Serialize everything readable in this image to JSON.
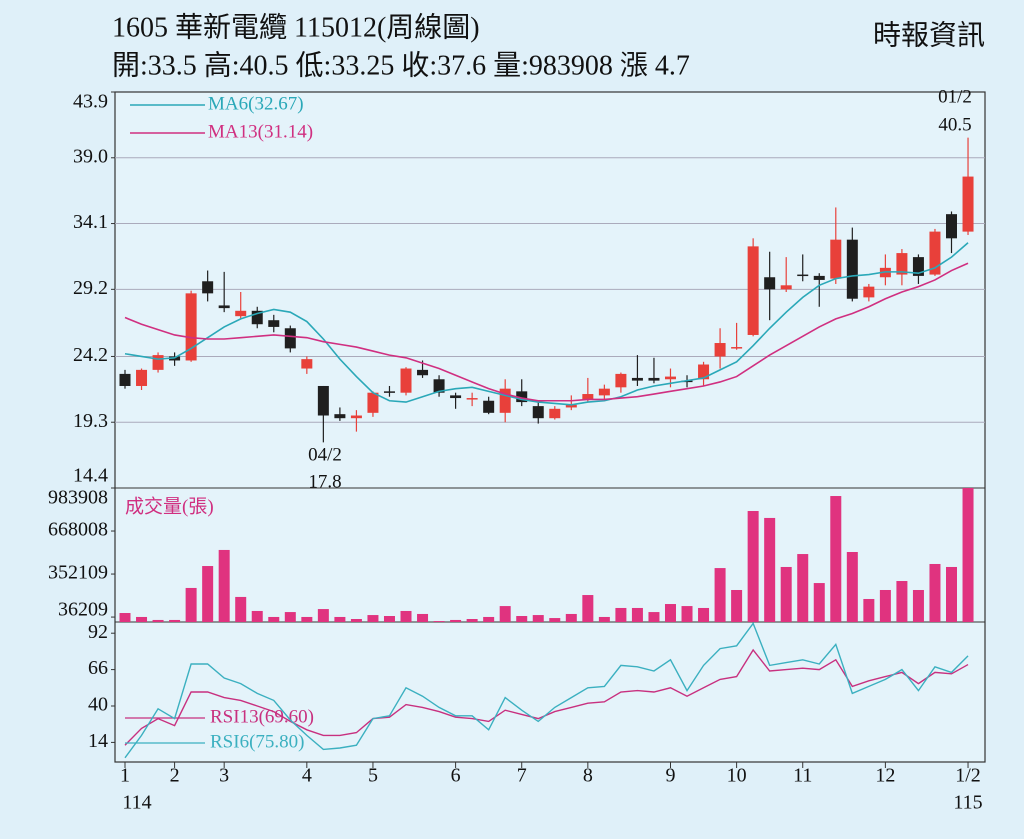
{
  "chart_data": {
    "type": "candlestick",
    "title": "1605  華新電纜 115012(周線圖)",
    "subtitle": "開:33.5 高:40.5 低:33.25 收:37.6 量:983908 漲 4.7",
    "source": "時報資訊",
    "categories": [
      "1",
      null,
      null,
      "2",
      null,
      null,
      "3",
      null,
      null,
      null,
      null,
      "4",
      null,
      null,
      null,
      "5",
      null,
      null,
      null,
      null,
      "6",
      null,
      null,
      null,
      "7",
      null,
      null,
      null,
      "8",
      null,
      null,
      null,
      null,
      "9",
      null,
      null,
      null,
      "10",
      null,
      null,
      null,
      "11",
      null,
      null,
      null,
      null,
      "12",
      null,
      null,
      null,
      null,
      "1/2"
    ],
    "x_sublabels": [
      "114",
      "115"
    ],
    "up_color": "#e8403a",
    "down_color": "#1f1f1f",
    "open": [
      22.9,
      22.0,
      23.2,
      24.2,
      23.9,
      29.8,
      28.0,
      27.2,
      27.6,
      26.9,
      26.3,
      23.3,
      22.0,
      19.9,
      19.6,
      20.0,
      21.6,
      21.5,
      23.2,
      22.5,
      21.3,
      21.0,
      20.9,
      20.0,
      21.6,
      20.5,
      19.6,
      20.4,
      21.0,
      21.3,
      21.9,
      22.6,
      22.6,
      22.5,
      22.4,
      22.5,
      24.2,
      24.8,
      25.8,
      30.1,
      29.2,
      30.3,
      30.2,
      30.0,
      32.9,
      28.6,
      30.1,
      30.3,
      31.6,
      30.3,
      34.8,
      33.5
    ],
    "high": [
      23.2,
      23.3,
      24.5,
      24.5,
      29.1,
      30.6,
      30.5,
      29.0,
      27.9,
      27.3,
      26.5,
      24.2,
      22.0,
      20.4,
      20.2,
      21.6,
      22.0,
      23.4,
      23.9,
      22.8,
      21.5,
      21.5,
      21.2,
      22.5,
      22.5,
      20.8,
      20.5,
      21.3,
      22.6,
      22.1,
      23.0,
      24.3,
      24.1,
      23.3,
      22.8,
      23.8,
      26.3,
      26.7,
      33.0,
      32.0,
      31.6,
      31.8,
      30.4,
      35.3,
      33.8,
      29.6,
      31.8,
      32.2,
      31.8,
      33.7,
      35.0,
      40.5
    ],
    "low": [
      21.8,
      21.7,
      23.0,
      23.5,
      23.8,
      28.3,
      27.5,
      27.0,
      26.3,
      26.0,
      24.5,
      22.9,
      17.8,
      19.4,
      18.6,
      19.7,
      21.2,
      21.3,
      22.6,
      21.2,
      20.3,
      20.5,
      19.9,
      19.3,
      20.5,
      19.2,
      19.5,
      20.2,
      20.8,
      21.0,
      21.5,
      22.0,
      22.2,
      21.9,
      21.9,
      22.0,
      23.3,
      24.7,
      25.7,
      26.9,
      29.0,
      29.8,
      27.9,
      29.6,
      28.3,
      28.3,
      29.5,
      29.5,
      29.6,
      30.2,
      31.9,
      33.25
    ],
    "close": [
      22.0,
      23.2,
      24.3,
      23.9,
      28.9,
      28.9,
      27.8,
      27.6,
      26.6,
      26.4,
      24.8,
      24.0,
      19.8,
      19.6,
      19.8,
      21.5,
      21.5,
      23.3,
      22.8,
      21.5,
      21.1,
      21.1,
      20.0,
      21.8,
      20.8,
      19.6,
      20.3,
      20.6,
      21.4,
      21.8,
      22.9,
      22.4,
      22.4,
      22.7,
      22.3,
      23.6,
      25.2,
      24.9,
      32.4,
      29.2,
      29.5,
      30.2,
      29.9,
      32.9,
      28.5,
      29.4,
      30.8,
      31.9,
      30.2,
      33.5,
      33.0,
      37.6
    ],
    "ylim": [
      14.4,
      43.9
    ],
    "yticks": [
      14.4,
      19.3,
      24.2,
      29.2,
      34.1,
      {
        "value": 39,
        "label": "39.0"
      },
      43.9
    ],
    "grid": true,
    "series": [
      {
        "name": "MA6(32.67)",
        "color": "#2aa8b8",
        "values": [
          24.4,
          24.2,
          24.0,
          24.1,
          24.8,
          25.6,
          26.4,
          27.0,
          27.4,
          27.7,
          27.5,
          26.8,
          25.5,
          24.0,
          22.7,
          21.5,
          20.9,
          20.8,
          21.2,
          21.6,
          21.8,
          21.9,
          21.6,
          21.3,
          21.0,
          20.8,
          20.7,
          20.6,
          20.8,
          20.9,
          21.2,
          21.7,
          22.0,
          22.2,
          22.4,
          22.6,
          23.2,
          23.8,
          25.0,
          26.3,
          27.5,
          28.6,
          29.5,
          30.0,
          30.2,
          30.3,
          30.5,
          30.5,
          30.4,
          30.8,
          31.6,
          32.67
        ]
      },
      {
        "name": "MA13(31.14)",
        "color": "#d02f80",
        "values": [
          27.1,
          26.6,
          26.2,
          25.8,
          25.6,
          25.5,
          25.5,
          25.6,
          25.7,
          25.8,
          25.7,
          25.6,
          25.3,
          25.1,
          24.9,
          24.6,
          24.3,
          24.1,
          23.7,
          23.3,
          22.8,
          22.3,
          21.8,
          21.4,
          21.1,
          20.9,
          20.9,
          20.9,
          21.0,
          21.0,
          21.1,
          21.2,
          21.4,
          21.6,
          21.8,
          22.0,
          22.3,
          22.7,
          23.5,
          24.3,
          25.0,
          25.7,
          26.4,
          27.0,
          27.4,
          27.9,
          28.5,
          29.0,
          29.4,
          29.9,
          30.6,
          31.14
        ]
      }
    ],
    "annotations": [
      {
        "date": "01/2",
        "value": 40.5
      },
      {
        "date": "04/2",
        "value": 17.8
      }
    ],
    "volume": {
      "label": "成交量(張)",
      "color": "#e0337f",
      "ylim": [
        0,
        983908
      ],
      "yticks": [
        36209,
        352109,
        668008,
        983908
      ],
      "values": [
        66000,
        37000,
        15000,
        15000,
        250000,
        411000,
        529000,
        184000,
        81000,
        37000,
        73000,
        37000,
        95000,
        37000,
        22000,
        51000,
        44000,
        81000,
        59000,
        7000,
        15000,
        22000,
        37000,
        117000,
        44000,
        51000,
        29000,
        59000,
        198000,
        37000,
        103000,
        103000,
        73000,
        132000,
        117000,
        103000,
        396000,
        235000,
        815000,
        764000,
        404000,
        499000,
        286000,
        925000,
        514000,
        169000,
        235000,
        301000,
        235000,
        426000,
        404000,
        983908
      ]
    },
    "rsi": {
      "ylim": [
        0,
        100
      ],
      "yticks": [
        14,
        40,
        66,
        92
      ],
      "series": [
        {
          "name": "RSI13(69.60)",
          "color": "#c8307f",
          "values": [
            12,
            24,
            31,
            26,
            50,
            50,
            46,
            44,
            40,
            36,
            29,
            23,
            19,
            19,
            21,
            31,
            32,
            41,
            39,
            36,
            32,
            31,
            29,
            37,
            34,
            31,
            36,
            39,
            42,
            43,
            50,
            51,
            50,
            53,
            47,
            53,
            59,
            61,
            80,
            65,
            66,
            67,
            66,
            73,
            54,
            58,
            61,
            64,
            56,
            64,
            63,
            69.6
          ]
        },
        {
          "name": "RSI6(75.80)",
          "color": "#3bb0c0",
          "values": [
            3,
            19,
            38,
            31,
            70,
            70,
            60,
            56,
            49,
            44,
            30,
            19,
            9,
            10,
            12,
            31,
            33,
            53,
            47,
            39,
            33,
            33,
            23,
            46,
            37,
            29,
            39,
            46,
            53,
            54,
            69,
            68,
            65,
            73,
            51,
            69,
            81,
            83,
            99,
            69,
            71,
            73,
            70,
            84,
            49,
            54,
            59,
            66,
            51,
            68,
            64,
            75.8
          ]
        }
      ]
    }
  }
}
